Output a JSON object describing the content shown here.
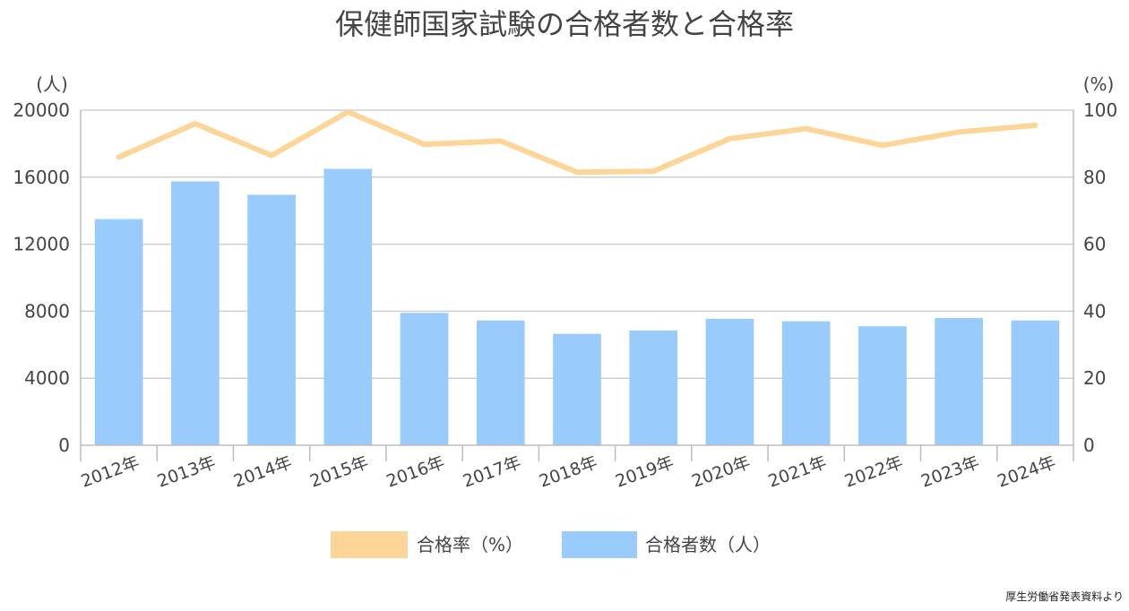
{
  "chart_data": {
    "type": "bar",
    "title": "保健師国家試験の合格者数と合格率",
    "categories": [
      "2012年",
      "2013年",
      "2014年",
      "2015年",
      "2016年",
      "2017年",
      "2018年",
      "2019年",
      "2020年",
      "2021年",
      "2022年",
      "2023年",
      "2024年"
    ],
    "series": [
      {
        "name": "合格者数（人）",
        "type": "bar",
        "axis": "left",
        "color": "#99ccfd",
        "values": [
          13500,
          15750,
          14950,
          16500,
          7900,
          7450,
          6650,
          6850,
          7550,
          7400,
          7100,
          7600,
          7450
        ]
      },
      {
        "name": "合格率（%）",
        "type": "line",
        "axis": "right",
        "color": "#fcd597",
        "values": [
          86.0,
          96.0,
          86.5,
          99.5,
          89.8,
          90.8,
          81.5,
          81.8,
          91.5,
          94.5,
          89.5,
          93.5,
          95.5
        ]
      }
    ],
    "y_left": {
      "unit": "(人)",
      "range": [
        0,
        20000
      ],
      "ticks": [
        "0",
        "4000",
        "8000",
        "12000",
        "16000",
        "20000"
      ]
    },
    "y_right": {
      "unit": "(%)",
      "range": [
        0,
        100
      ],
      "ticks": [
        "0",
        "20",
        "40",
        "60",
        "80",
        "100"
      ]
    },
    "grid": true,
    "legend_position": "bottom",
    "legend": [
      "合格率（%）",
      "合格者数（人）"
    ],
    "source": "厚生労働省発表資料より"
  }
}
